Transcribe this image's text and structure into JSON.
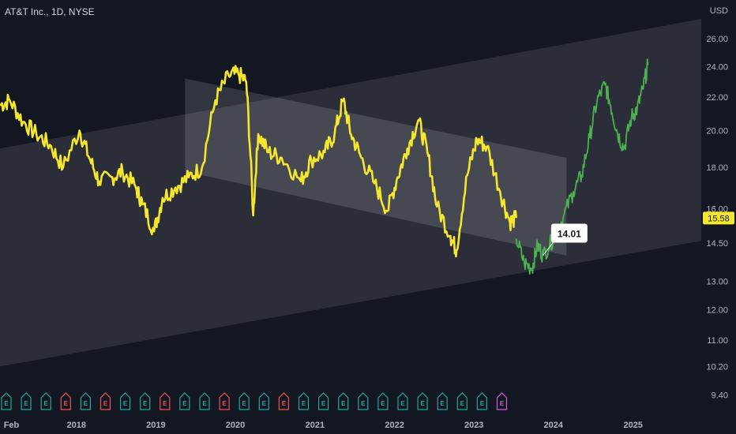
{
  "header": {
    "title": "AT&T Inc., 1D, NYSE",
    "currency": "USD"
  },
  "last_price": {
    "value": 15.58,
    "label": "15.58",
    "color": "#f5e72d"
  },
  "callout": {
    "label": "14.01",
    "value": 14.01
  },
  "colors": {
    "history": "#f5e72d",
    "projection": "#4caf50",
    "channel": "#ffffff",
    "background": "#131722",
    "earnings_green": "#26a69a",
    "earnings_red": "#ef5350",
    "earnings_upcoming": "#d05fd8"
  },
  "chart_data": {
    "type": "line",
    "y_scale": "log",
    "ylim": [
      9.0,
      27.5
    ],
    "xlim": [
      "2017-01-15",
      "2025-11-10"
    ],
    "y_ticks": [
      "26.00",
      "24.00",
      "22.00",
      "20.00",
      "18.00",
      "16.00",
      "14.50",
      "13.00",
      "12.00",
      "11.00",
      "10.20",
      "9.40"
    ],
    "y_tick_values": [
      26.0,
      24.0,
      22.0,
      20.0,
      18.0,
      16.0,
      14.5,
      13.0,
      12.0,
      11.0,
      10.2,
      9.4
    ],
    "x_ticks": [
      "Feb",
      "2018",
      "2019",
      "2020",
      "2021",
      "2022",
      "2023",
      "2024",
      "2025"
    ],
    "x_tick_dates": [
      "2017-02-01",
      "2018-01-01",
      "2019-01-01",
      "2020-01-01",
      "2021-01-01",
      "2022-01-01",
      "2023-01-01",
      "2024-01-01",
      "2025-01-01"
    ],
    "series": [
      {
        "role": "history",
        "color": "#f5e72d",
        "x": [
          "2017-01-15",
          "2017-03-01",
          "2017-05-01",
          "2017-07-01",
          "2017-09-01",
          "2017-11-01",
          "2018-01-15",
          "2018-03-01",
          "2018-04-15",
          "2018-06-15",
          "2018-08-01",
          "2018-10-01",
          "2018-11-01",
          "2018-12-24",
          "2019-02-01",
          "2019-04-01",
          "2019-06-01",
          "2019-08-01",
          "2019-10-01",
          "2019-12-01",
          "2020-01-15",
          "2020-02-20",
          "2020-03-23",
          "2020-04-15",
          "2020-06-01",
          "2020-08-01",
          "2020-10-28",
          "2020-12-15",
          "2021-02-15",
          "2021-04-01",
          "2021-05-10",
          "2021-06-15",
          "2021-08-01",
          "2021-10-01",
          "2021-11-30",
          "2022-01-15",
          "2022-03-01",
          "2022-04-20",
          "2022-06-01",
          "2022-07-15",
          "2022-09-15",
          "2022-10-13",
          "2022-12-01",
          "2023-01-15",
          "2023-03-01",
          "2023-05-01",
          "2023-06-15",
          "2023-07-14"
        ],
        "y": [
          21.5,
          21.8,
          20.5,
          19.8,
          19.2,
          18.0,
          20.0,
          18.5,
          17.3,
          17.5,
          17.8,
          17.0,
          16.2,
          15.0,
          16.5,
          17.0,
          17.5,
          18.0,
          21.8,
          23.4,
          23.5,
          23.0,
          15.7,
          19.8,
          18.8,
          18.5,
          17.3,
          18.4,
          18.8,
          19.8,
          21.8,
          19.8,
          18.5,
          17.2,
          15.9,
          17.5,
          19.0,
          20.6,
          18.8,
          16.1,
          14.8,
          14.2,
          17.6,
          19.5,
          19.1,
          16.8,
          15.4,
          15.58
        ]
      },
      {
        "role": "projection",
        "color": "#4caf50",
        "x": [
          "2023-07-14",
          "2023-08-20",
          "2023-09-25",
          "2023-10-20",
          "2023-11-15",
          "2024-01-01",
          "2024-02-15",
          "2024-04-01",
          "2024-05-10",
          "2024-06-15",
          "2024-07-20",
          "2024-08-25",
          "2024-09-20",
          "2024-10-20",
          "2024-11-20",
          "2024-12-25",
          "2025-01-20",
          "2025-02-15",
          "2025-03-10"
        ],
        "y": [
          14.7,
          13.7,
          13.5,
          14.4,
          14.01,
          14.7,
          15.6,
          16.8,
          17.6,
          19.6,
          21.8,
          22.8,
          21.5,
          19.9,
          19.0,
          20.8,
          21.3,
          22.5,
          24.1
        ]
      }
    ],
    "annotations": [
      {
        "type": "channel",
        "upper": [
          [
            "2017-01-15",
            19.0
          ],
          [
            "2025-11-10",
            27.5
          ]
        ],
        "lower": [
          [
            "2017-01-15",
            10.2
          ],
          [
            "2025-11-10",
            14.6
          ]
        ]
      },
      {
        "type": "channel",
        "upper": [
          [
            "2019-05-15",
            23.2
          ],
          [
            "2024-03-01",
            18.5
          ]
        ],
        "lower": [
          [
            "2019-05-15",
            17.8
          ],
          [
            "2024-03-01",
            14.0
          ]
        ]
      }
    ],
    "earnings_markers": [
      {
        "label": "E",
        "type": "green"
      },
      {
        "label": "E",
        "type": "green"
      },
      {
        "label": "E",
        "type": "green"
      },
      {
        "label": "E",
        "type": "red"
      },
      {
        "label": "E",
        "type": "green"
      },
      {
        "label": "E",
        "type": "red"
      },
      {
        "label": "E",
        "type": "green"
      },
      {
        "label": "E",
        "type": "green"
      },
      {
        "label": "E",
        "type": "red"
      },
      {
        "label": "E",
        "type": "green"
      },
      {
        "label": "E",
        "type": "green"
      },
      {
        "label": "E",
        "type": "red"
      },
      {
        "label": "E",
        "type": "green"
      },
      {
        "label": "E",
        "type": "green"
      },
      {
        "label": "E",
        "type": "red"
      },
      {
        "label": "E",
        "type": "green"
      },
      {
        "label": "E",
        "type": "green"
      },
      {
        "label": "E",
        "type": "green"
      },
      {
        "label": "E",
        "type": "green"
      },
      {
        "label": "E",
        "type": "green"
      },
      {
        "label": "E",
        "type": "green"
      },
      {
        "label": "E",
        "type": "green"
      },
      {
        "label": "E",
        "type": "green"
      },
      {
        "label": "E",
        "type": "green"
      },
      {
        "label": "E",
        "type": "green"
      },
      {
        "label": "E",
        "type": "upcoming"
      }
    ]
  }
}
